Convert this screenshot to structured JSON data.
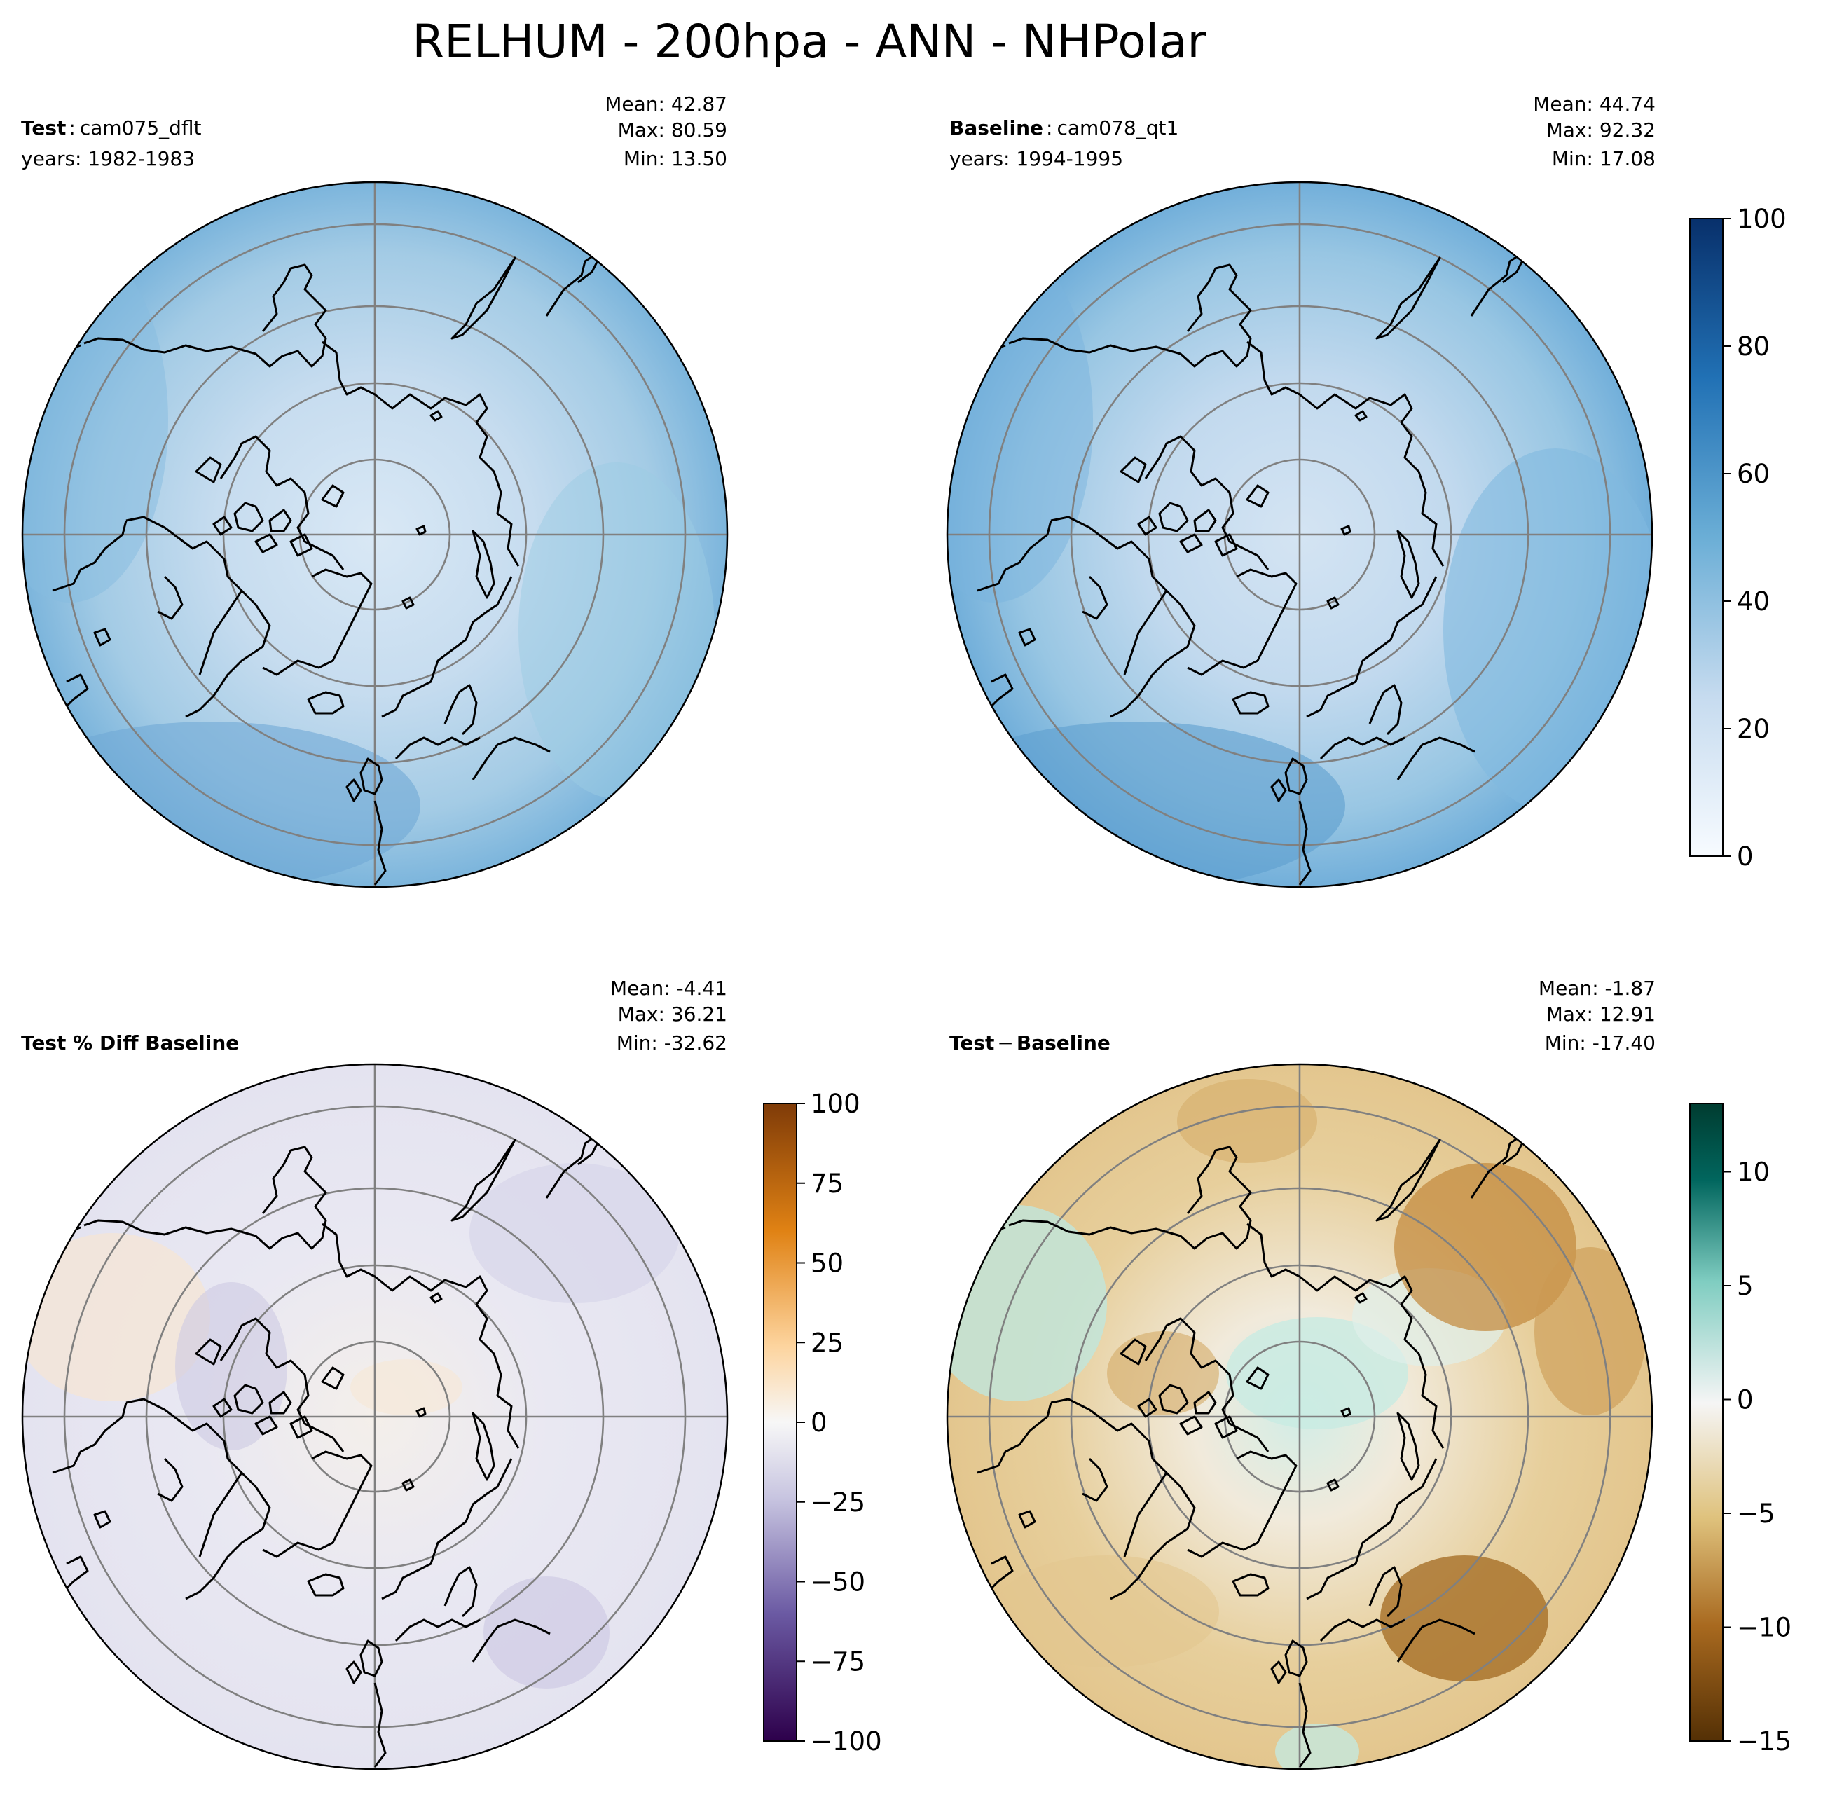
{
  "title": "RELHUM - 200hpa - ANN - NHPolar",
  "panels": {
    "test": {
      "label_bold": "Test",
      "label_sep": ":",
      "label_rest": "cam075_dflt",
      "years": "years: 1982-1983",
      "mean": "Mean: 42.87",
      "max": "Max: 80.59",
      "min": "Min: 13.50"
    },
    "baseline": {
      "label_bold": "Baseline",
      "label_sep": ":",
      "label_rest": "cam078_qt1",
      "years": "years: 1994-1995",
      "mean": "Mean: 44.74",
      "max": "Max: 92.32",
      "min": "Min: 17.08"
    },
    "pctdiff": {
      "label_bold": "Test % Diff Baseline",
      "mean": "Mean: -4.41",
      "max": "Max: 36.21",
      "min": "Min: -32.62"
    },
    "diff": {
      "label_test": "Test",
      "label_minus": "−",
      "label_base": "Baseline",
      "mean": "Mean: -1.87",
      "max": "Max: 12.91",
      "min": "Min: -17.40"
    }
  },
  "colorbars": {
    "abs": {
      "ticks": [
        "0",
        "20",
        "40",
        "60",
        "80",
        "100"
      ],
      "range": [
        0,
        100
      ],
      "colors": [
        "#f7fbff",
        "#c6dbef",
        "#6baed6",
        "#2171b5",
        "#08306b"
      ]
    },
    "pct": {
      "ticks": [
        "−100",
        "−75",
        "−50",
        "−25",
        "0",
        "25",
        "50",
        "75",
        "100"
      ],
      "range": [
        -100,
        100
      ],
      "colors": [
        "#2d004b",
        "#8073ac",
        "#d8daeb",
        "#f7f7f7",
        "#fdb863",
        "#e08214",
        "#7f3b08"
      ]
    },
    "diff": {
      "ticks": [
        "−15",
        "−10",
        "−5",
        "0",
        "5",
        "10"
      ],
      "range": [
        -15,
        13
      ],
      "colors": [
        "#543005",
        "#bf812d",
        "#f6e8c3",
        "#f5f5f5",
        "#80cdc1",
        "#01665e",
        "#003c30"
      ]
    }
  },
  "map_colors": {
    "ocean_test": "#a9cfe6",
    "ocean_base": "#9fcbe4",
    "ocean_pct": "#ececf4",
    "ocean_diff": "#ecd9b0",
    "grid": "#808080",
    "coast": "#000000"
  }
}
